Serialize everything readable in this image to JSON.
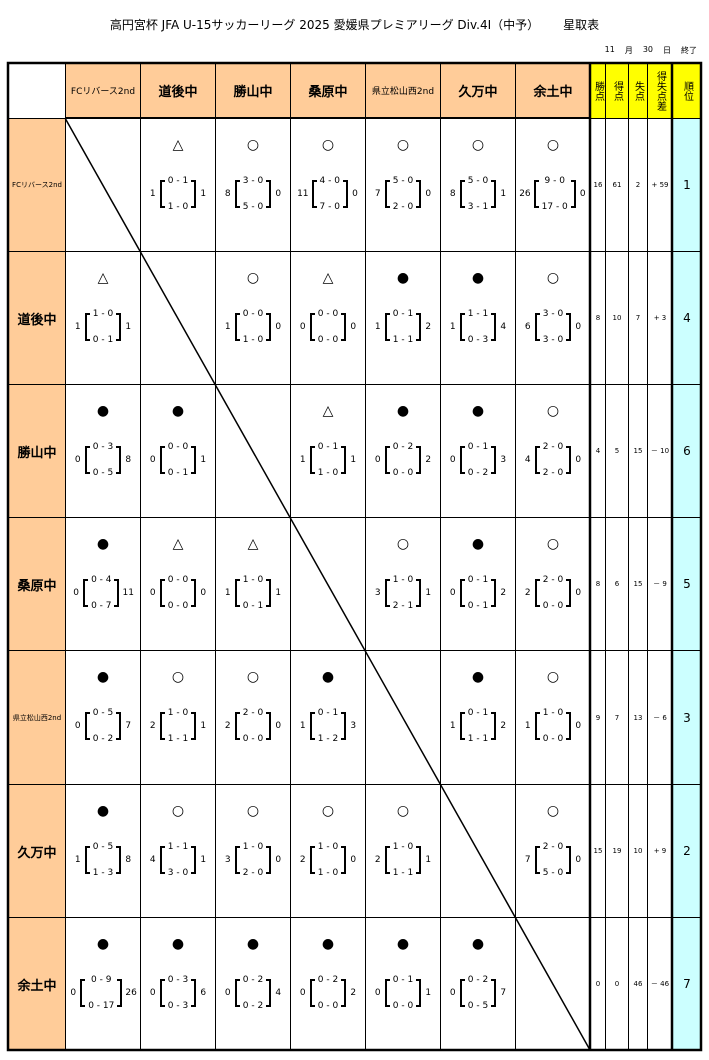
{
  "title": {
    "main": "高円宮杯 JFA U-15サッカーリーグ 2025 愛媛県プレミアリーグ Div.4I（中予）",
    "sub": "星取表"
  },
  "date": {
    "month": "11",
    "month_label": "月",
    "day": "30",
    "day_label": "日",
    "status": "終了"
  },
  "teams": [
    "FCリバース2nd",
    "道後中",
    "勝山中",
    "桑原中",
    "県立松山西2nd",
    "久万中",
    "余土中"
  ],
  "stat_headers": [
    "勝点",
    "得点",
    "失点",
    "得失点差",
    "順位"
  ],
  "results": [
    [
      null,
      "△|1|0-1|1-0|1",
      "○|8|3-0|5-0|0",
      "○|11|4-0|7-0|0",
      "○|7|5-0|2-0|0",
      "○|8|5-0|3-1|1",
      "○|26|9-0|17-0|0"
    ],
    [
      "△|1|1-0|0-1|1",
      null,
      "○|1|0-0|1-0|0",
      "△|0|0-0|0-0|0",
      "●|1|0-1|1-1|2",
      "●|1|1-1|0-3|4",
      "○|6|3-0|3-0|0"
    ],
    [
      "●|0|0-3|0-5|8",
      "●|0|0-0|0-1|1",
      null,
      "△|1|0-1|1-0|1",
      "●|0|0-2|0-0|2",
      "●|0|0-1|0-2|3",
      "○|4|2-0|2-0|0"
    ],
    [
      "●|0|0-4|0-7|11",
      "△|0|0-0|0-0|0",
      "△|1|1-0|0-1|1",
      null,
      "○|3|1-0|2-1|1",
      "●|0|0-1|0-1|2",
      "○|2|2-0|0-0|0"
    ],
    [
      "●|0|0-5|0-2|7",
      "○|2|1-0|1-1|1",
      "○|2|2-0|0-0|0",
      "●|1|0-1|1-2|3",
      null,
      "●|1|0-1|1-1|2",
      "○|1|1-0|0-0|0"
    ],
    [
      "●|1|0-5|1-3|8",
      "○|4|1-1|3-0|1",
      "○|3|1-0|2-0|0",
      "○|2|1-0|1-0|0",
      "○|2|1-0|1-1|1",
      null,
      "○|7|2-0|5-0|0"
    ],
    [
      "●|0|0-9|0-17|26",
      "●|0|0-3|0-3|6",
      "●|0|0-2|0-2|4",
      "●|0|0-2|0-0|2",
      "●|0|0-1|0-0|1",
      "●|0|0-2|0-5|7",
      null
    ]
  ],
  "stats": [
    [
      "16",
      "61",
      "2",
      "+ 59",
      "1"
    ],
    [
      "8",
      "10",
      "7",
      "+ 3",
      "4"
    ],
    [
      "4",
      "5",
      "15",
      "－ 10",
      "6"
    ],
    [
      "8",
      "6",
      "15",
      "－ 9",
      "5"
    ],
    [
      "9",
      "7",
      "13",
      "－ 6",
      "3"
    ],
    [
      "15",
      "19",
      "10",
      "+ 9",
      "2"
    ],
    [
      "0",
      "0",
      "46",
      "－ 46",
      "7"
    ]
  ],
  "colors": {
    "team_header": "#ffcc99",
    "stat_header": "#ffff00",
    "rank": "#ccffff"
  }
}
